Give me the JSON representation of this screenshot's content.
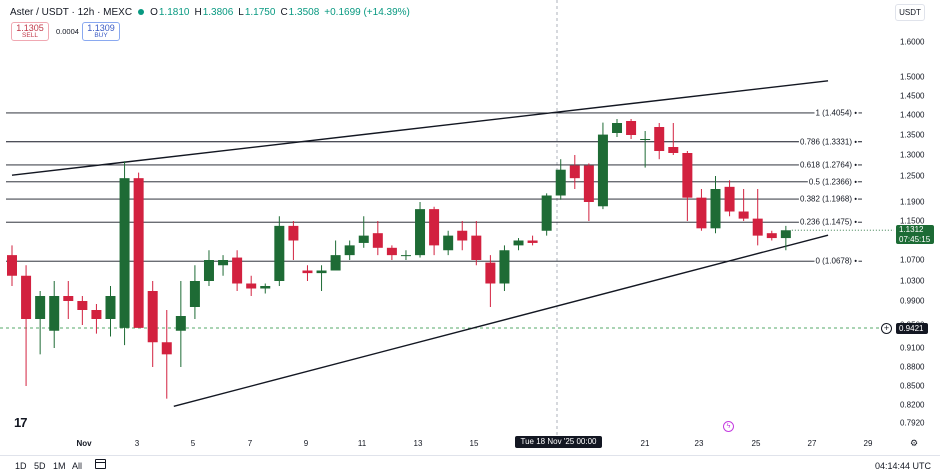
{
  "header": {
    "symbol": "Aster / USDT · 12h · MEXC",
    "open_label": "O",
    "open": "1.1810",
    "high_label": "H",
    "high": "1.3806",
    "low_label": "L",
    "low": "1.1750",
    "close_label": "C",
    "close": "1.3508",
    "change": "+0.1699 (+14.39%)",
    "accent": "#089981"
  },
  "trade": {
    "sell_price": "1.1305",
    "sell_label": "SELL",
    "spread": "0.0004",
    "buy_price": "1.1309",
    "buy_label": "BUY"
  },
  "currency_button": "USDT",
  "price_axis": {
    "ticks": [
      "1.6000",
      "1.5000",
      "1.4500",
      "1.4000",
      "1.3500",
      "1.3000",
      "1.2500",
      "1.1900",
      "1.1500",
      "1.0700",
      "1.0300",
      "0.9900",
      "0.9500",
      "0.9100",
      "0.8800",
      "0.8500",
      "0.8200",
      "0.7920"
    ],
    "current_price": "1.1312",
    "countdown": "07:45:15",
    "crosshair_price": "0.9421"
  },
  "fib_levels": [
    {
      "label": "1 (1.4054)",
      "value": 1.4054
    },
    {
      "label": "0.786 (1.3331)",
      "value": 1.3331
    },
    {
      "label": "0.618 (1.2764)",
      "value": 1.2764
    },
    {
      "label": "0.5 (1.2366)",
      "value": 1.2366
    },
    {
      "label": "0.382 (1.1968)",
      "value": 1.1968
    },
    {
      "label": "0.236 (1.1475)",
      "value": 1.1475
    },
    {
      "label": "0 (1.0678)",
      "value": 1.0678
    }
  ],
  "time_axis": {
    "labels": [
      "Nov",
      "3",
      "5",
      "7",
      "9",
      "11",
      "13",
      "15",
      "21",
      "23",
      "25",
      "27",
      "29"
    ],
    "crosshair_time": "Tue 18 Nov '25   00:00"
  },
  "bottom_bar": {
    "ranges": [
      "1D",
      "5D",
      "1M",
      "All"
    ],
    "clock": "04:14:44 UTC"
  },
  "colors": {
    "up": "#1e6b35",
    "down": "#d2213f",
    "line": "#131722"
  },
  "chart_data": {
    "type": "candlestick",
    "title": "",
    "xlabel": "",
    "ylabel": "",
    "interval": "12h",
    "ylim": [
      0.792,
      1.6
    ],
    "candles": [
      {
        "o": 1.08,
        "h": 1.1,
        "l": 1.02,
        "c": 1.04
      },
      {
        "o": 1.04,
        "h": 1.06,
        "l": 0.85,
        "c": 0.96
      },
      {
        "o": 0.96,
        "h": 1.01,
        "l": 0.9,
        "c": 1.0
      },
      {
        "o": 0.94,
        "h": 1.03,
        "l": 0.91,
        "c": 1.0
      },
      {
        "o": 1.0,
        "h": 1.03,
        "l": 0.96,
        "c": 0.99
      },
      {
        "o": 0.99,
        "h": 1.0,
        "l": 0.95,
        "c": 0.975
      },
      {
        "o": 0.975,
        "h": 0.985,
        "l": 0.935,
        "c": 0.96
      },
      {
        "o": 0.96,
        "h": 1.02,
        "l": 0.93,
        "c": 1.0
      },
      {
        "o": 0.945,
        "h": 1.285,
        "l": 0.915,
        "c": 1.245
      },
      {
        "o": 1.245,
        "h": 1.258,
        "l": 0.945,
        "c": 0.945
      },
      {
        "o": 1.01,
        "h": 1.03,
        "l": 0.88,
        "c": 0.92
      },
      {
        "o": 0.92,
        "h": 0.975,
        "l": 0.83,
        "c": 0.9
      },
      {
        "o": 0.94,
        "h": 1.03,
        "l": 0.88,
        "c": 0.965
      },
      {
        "o": 0.98,
        "h": 1.06,
        "l": 0.96,
        "c": 1.03
      },
      {
        "o": 1.03,
        "h": 1.09,
        "l": 1.02,
        "c": 1.07
      },
      {
        "o": 1.06,
        "h": 1.08,
        "l": 1.04,
        "c": 1.07
      },
      {
        "o": 1.075,
        "h": 1.09,
        "l": 1.01,
        "c": 1.025
      },
      {
        "o": 1.025,
        "h": 1.04,
        "l": 1.0,
        "c": 1.015
      },
      {
        "o": 1.015,
        "h": 1.025,
        "l": 1.005,
        "c": 1.02
      },
      {
        "o": 1.03,
        "h": 1.16,
        "l": 1.02,
        "c": 1.14
      },
      {
        "o": 1.14,
        "h": 1.15,
        "l": 1.07,
        "c": 1.11
      },
      {
        "o": 1.05,
        "h": 1.06,
        "l": 1.03,
        "c": 1.045
      },
      {
        "o": 1.045,
        "h": 1.06,
        "l": 1.01,
        "c": 1.05
      },
      {
        "o": 1.05,
        "h": 1.11,
        "l": 1.05,
        "c": 1.08
      },
      {
        "o": 1.08,
        "h": 1.11,
        "l": 1.07,
        "c": 1.1
      },
      {
        "o": 1.105,
        "h": 1.16,
        "l": 1.095,
        "c": 1.12
      },
      {
        "o": 1.125,
        "h": 1.15,
        "l": 1.08,
        "c": 1.095
      },
      {
        "o": 1.095,
        "h": 1.1,
        "l": 1.07,
        "c": 1.08
      },
      {
        "o": 1.08,
        "h": 1.09,
        "l": 1.07,
        "c": 1.08
      },
      {
        "o": 1.08,
        "h": 1.19,
        "l": 1.075,
        "c": 1.175
      },
      {
        "o": 1.175,
        "h": 1.18,
        "l": 1.08,
        "c": 1.1
      },
      {
        "o": 1.09,
        "h": 1.13,
        "l": 1.08,
        "c": 1.12
      },
      {
        "o": 1.13,
        "h": 1.15,
        "l": 1.09,
        "c": 1.11
      },
      {
        "o": 1.12,
        "h": 1.15,
        "l": 1.06,
        "c": 1.07
      },
      {
        "o": 1.065,
        "h": 1.08,
        "l": 0.98,
        "c": 1.025
      },
      {
        "o": 1.025,
        "h": 1.1,
        "l": 1.01,
        "c": 1.09
      },
      {
        "o": 1.1,
        "h": 1.115,
        "l": 1.09,
        "c": 1.11
      },
      {
        "o": 1.11,
        "h": 1.12,
        "l": 1.1,
        "c": 1.105
      },
      {
        "o": 1.13,
        "h": 1.21,
        "l": 1.12,
        "c": 1.205
      },
      {
        "o": 1.205,
        "h": 1.29,
        "l": 1.195,
        "c": 1.265
      },
      {
        "o": 1.275,
        "h": 1.3,
        "l": 1.22,
        "c": 1.245
      },
      {
        "o": 1.275,
        "h": 1.28,
        "l": 1.15,
        "c": 1.19
      },
      {
        "o": 1.181,
        "h": 1.381,
        "l": 1.175,
        "c": 1.351
      },
      {
        "o": 1.355,
        "h": 1.39,
        "l": 1.345,
        "c": 1.38
      },
      {
        "o": 1.385,
        "h": 1.39,
        "l": 1.34,
        "c": 1.35
      },
      {
        "o": 1.34,
        "h": 1.36,
        "l": 1.27,
        "c": 1.34
      },
      {
        "o": 1.37,
        "h": 1.38,
        "l": 1.29,
        "c": 1.31
      },
      {
        "o": 1.32,
        "h": 1.38,
        "l": 1.3,
        "c": 1.305
      },
      {
        "o": 1.305,
        "h": 1.31,
        "l": 1.15,
        "c": 1.2
      },
      {
        "o": 1.2,
        "h": 1.22,
        "l": 1.13,
        "c": 1.135
      },
      {
        "o": 1.135,
        "h": 1.25,
        "l": 1.125,
        "c": 1.22
      },
      {
        "o": 1.225,
        "h": 1.24,
        "l": 1.16,
        "c": 1.17
      },
      {
        "o": 1.17,
        "h": 1.22,
        "l": 1.15,
        "c": 1.155
      },
      {
        "o": 1.155,
        "h": 1.22,
        "l": 1.1,
        "c": 1.12
      },
      {
        "o": 1.125,
        "h": 1.13,
        "l": 1.11,
        "c": 1.115
      },
      {
        "o": 1.115,
        "h": 1.14,
        "l": 1.09,
        "c": 1.131
      }
    ],
    "trendlines": [
      {
        "name": "upper",
        "from": {
          "candle": 0,
          "price": 1.252
        },
        "to": {
          "candle": 58,
          "price": 1.49
        }
      },
      {
        "name": "lower",
        "from": {
          "candle": 11.5,
          "price": 0.818
        },
        "to": {
          "candle": 58,
          "price": 1.121
        }
      }
    ]
  }
}
